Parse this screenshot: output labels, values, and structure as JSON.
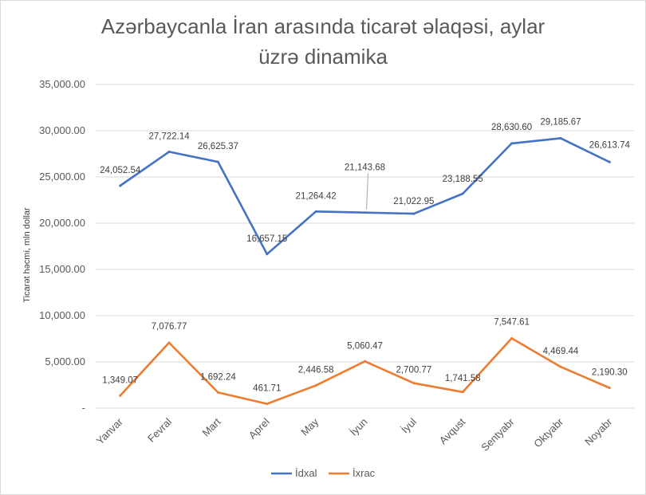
{
  "chart_data": {
    "type": "line",
    "title_line1": "Azərbaycanla İran arasında ticarət əlaqəsi, aylar",
    "title_line2": "üzrə dinamika",
    "ylabel": "Ticarət həcmi,  mln dollar",
    "xlabel": "",
    "ylim": [
      0,
      35000
    ],
    "yticks": [
      0,
      5000,
      10000,
      15000,
      20000,
      25000,
      30000,
      35000
    ],
    "ytick_labels": [
      "-",
      "5,000.00",
      "10,000.00",
      "15,000.00",
      "20,000.00",
      "25,000.00",
      "30,000.00",
      "35,000.00"
    ],
    "grid": true,
    "legend_position": "bottom",
    "categories": [
      "Yanvar",
      "Fevral",
      "Mart",
      "Aprel",
      "May",
      "İyun",
      "İyul",
      "Avqust",
      "Sentyabr",
      "Oktyabr",
      "Noyabr"
    ],
    "series": [
      {
        "name": "İdxal",
        "color": "#4472c4",
        "values": [
          24052.54,
          27722.14,
          26625.37,
          16657.15,
          21264.42,
          21143.68,
          21022.95,
          23188.55,
          28630.6,
          29185.67,
          26613.74
        ],
        "labels": [
          "24,052.54",
          "27,722.14",
          "26,625.37",
          "16,657.15",
          "21,264.42",
          "21,143.68",
          "21,022.95",
          "23,188.55",
          "28,630.60",
          "29,185.67",
          "26,613.74"
        ]
      },
      {
        "name": "İxrac",
        "color": "#ed7d31",
        "values": [
          1349.07,
          7076.77,
          1692.24,
          461.71,
          2446.58,
          5060.47,
          2700.77,
          1741.58,
          7547.61,
          4469.44,
          2190.3
        ],
        "labels": [
          "1,349.07",
          "7,076.77",
          "1,692.24",
          "461.71",
          "2,446.58",
          "5,060.47",
          "2,700.77",
          "1,741.58",
          "7,547.61",
          "4,469.44",
          "2,190.30"
        ]
      }
    ]
  }
}
